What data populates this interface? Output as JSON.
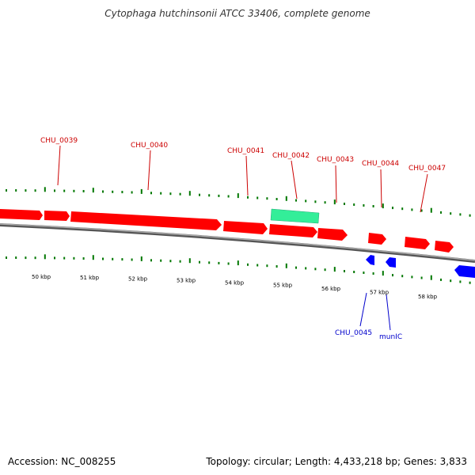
{
  "title": "Cytophaga hutchinsonii ATCC 33406, complete genome",
  "footer": {
    "accession": "Accession: NC_008255",
    "summary": "Topology: circular; Length: 4,433,218 bp; Genes: 3,833"
  },
  "colors": {
    "forward_gene": "#ff0000",
    "reverse_gene": "#0000ff",
    "rna_gene": "#33ee99",
    "forward_label": "#cc0000",
    "reverse_label": "#0000cc",
    "tick": "#007700",
    "backbone": "#888888"
  },
  "ruler": {
    "unit": "kbp",
    "labels": [
      {
        "text": "50 kbp",
        "kbp": 50
      },
      {
        "text": "51 kbp",
        "kbp": 51
      },
      {
        "text": "52 kbp",
        "kbp": 52
      },
      {
        "text": "53 kbp",
        "kbp": 53
      },
      {
        "text": "54 kbp",
        "kbp": 54
      },
      {
        "text": "55 kbp",
        "kbp": 55
      },
      {
        "text": "56 kbp",
        "kbp": 56
      },
      {
        "text": "57 kbp",
        "kbp": 57
      },
      {
        "text": "58 kbp",
        "kbp": 58
      }
    ]
  },
  "labels": {
    "forward": [
      "CHU_0039",
      "CHU_0040",
      "CHU_0041",
      "CHU_0042",
      "CHU_0043",
      "CHU_0044",
      "CHU_0047"
    ],
    "reverse": [
      "CHU_0045",
      "munIC"
    ]
  }
}
